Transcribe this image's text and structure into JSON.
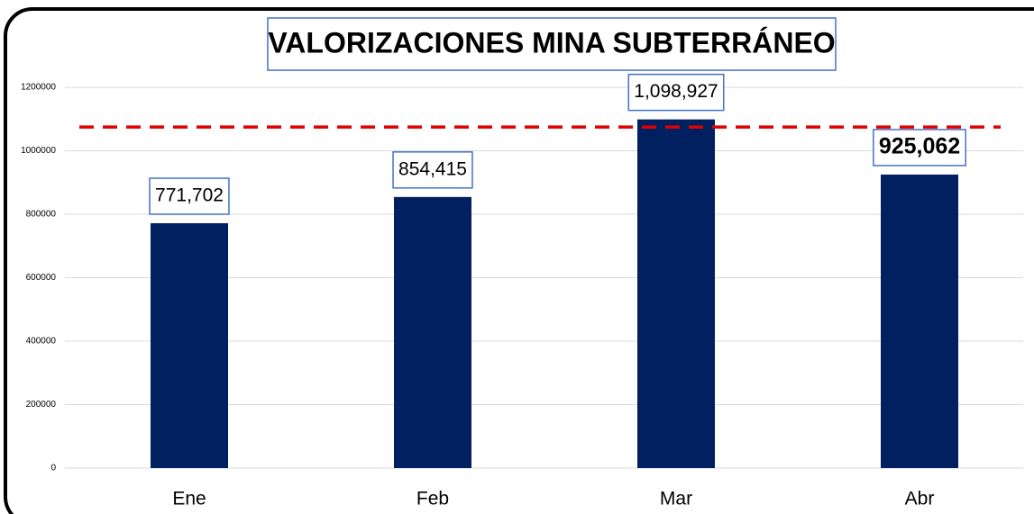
{
  "chart_data": {
    "type": "bar",
    "title": "VALORIZACIONES MINA SUBTERRÁNEO",
    "categories": [
      "Ene",
      "Feb",
      "Mar",
      "Abr"
    ],
    "values": [
      771702,
      854415,
      1098927,
      925062
    ],
    "value_labels": [
      "771,702",
      "854,415",
      "1,098,927",
      "925,062"
    ],
    "color": "#002060",
    "ylim": [
      0,
      1200000
    ],
    "yticks": [
      0,
      200000,
      400000,
      600000,
      800000,
      1000000,
      1200000
    ],
    "grid": true,
    "reference_line": {
      "value": 1075000,
      "color": "#e00000"
    }
  }
}
